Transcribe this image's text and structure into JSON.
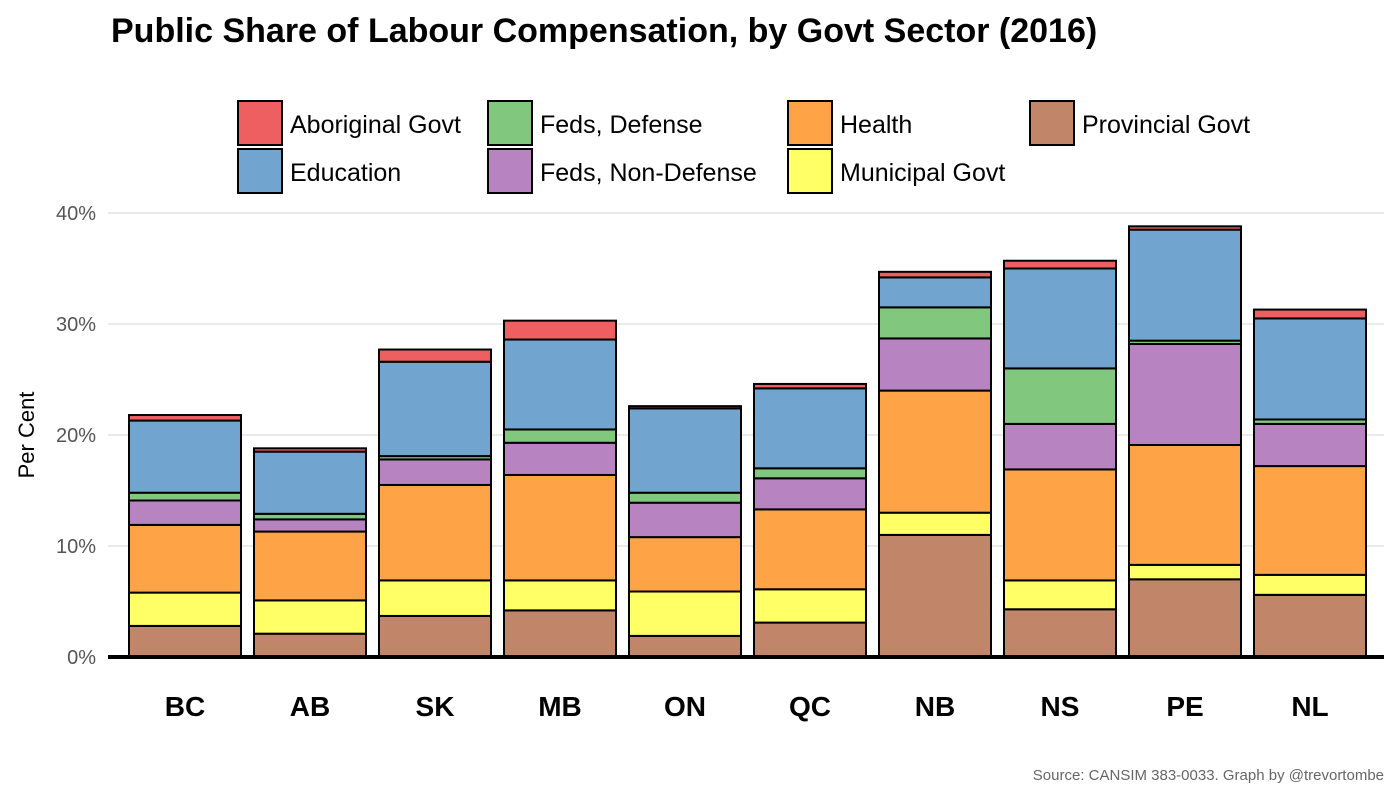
{
  "chart_data": {
    "type": "bar",
    "stacked": true,
    "title": "Public Share of Labour Compensation, by Govt Sector (2016)",
    "ylabel": "Per Cent",
    "xlabel": "",
    "ylim": [
      0,
      40
    ],
    "ytick_values": [
      0,
      10,
      20,
      30,
      40
    ],
    "ytick_labels": [
      "0%",
      "10%",
      "20%",
      "30%",
      "40%"
    ],
    "grid": true,
    "legend_position": "top",
    "source": "Source: CANSIM 383-0033. Graph by @trevortombe",
    "categories": [
      "BC",
      "AB",
      "SK",
      "MB",
      "ON",
      "QC",
      "NB",
      "NS",
      "PE",
      "NL"
    ],
    "legend_order": [
      "Aboriginal Govt",
      "Feds, Defense",
      "Health",
      "Provincial Govt",
      "Education",
      "Feds, Non-Defense",
      "Municipal Govt"
    ],
    "series": [
      {
        "name": "Provincial Govt",
        "color": "#C1856A",
        "values": [
          2.8,
          2.1,
          3.7,
          4.2,
          1.9,
          3.1,
          11.0,
          4.3,
          7.0,
          5.6
        ]
      },
      {
        "name": "Municipal Govt",
        "color": "#FFFF66",
        "values": [
          3.0,
          3.0,
          3.2,
          2.7,
          4.0,
          3.0,
          2.0,
          2.6,
          1.3,
          1.8
        ]
      },
      {
        "name": "Health",
        "color": "#FFA347",
        "values": [
          6.1,
          6.2,
          8.6,
          9.5,
          4.9,
          7.2,
          11.0,
          10.0,
          10.8,
          9.8
        ]
      },
      {
        "name": "Feds, Non-Defense",
        "color": "#B784C1",
        "values": [
          2.2,
          1.1,
          2.3,
          2.9,
          3.1,
          2.8,
          4.7,
          4.1,
          9.1,
          3.8
        ]
      },
      {
        "name": "Feds, Defense",
        "color": "#81C77E",
        "values": [
          0.7,
          0.5,
          0.3,
          1.2,
          0.9,
          0.9,
          2.8,
          5.0,
          0.3,
          0.4
        ]
      },
      {
        "name": "Education",
        "color": "#71A5CF",
        "values": [
          6.5,
          5.6,
          8.5,
          8.1,
          7.6,
          7.2,
          2.7,
          9.0,
          10.0,
          9.1
        ]
      },
      {
        "name": "Aboriginal Govt",
        "color": "#EE5F62",
        "values": [
          0.5,
          0.3,
          1.1,
          1.7,
          0.2,
          0.4,
          0.5,
          0.7,
          0.3,
          0.8
        ]
      }
    ]
  }
}
